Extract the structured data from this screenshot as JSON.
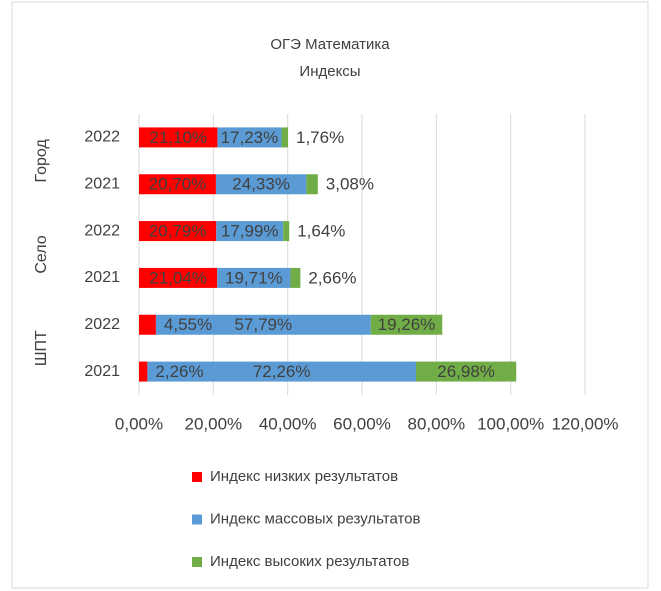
{
  "chart_data": {
    "type": "stacked_barh",
    "title": "ОГЭ Математика",
    "subtitle": "Индексы",
    "groups": [
      "Город",
      "Село",
      "ШПТ"
    ],
    "categories": [
      "2022",
      "2021",
      "2022",
      "2021",
      "2022",
      "2021"
    ],
    "series": [
      {
        "name": "Индекс низких результатов",
        "color": "#ff0000",
        "values": [
          21.1,
          20.7,
          20.79,
          21.04,
          4.55,
          2.26
        ],
        "value_labels": [
          "21,10%",
          "20,70%",
          "20,79%",
          "21,04%",
          "4,55%",
          "2,26%"
        ]
      },
      {
        "name": "Индекс массовых результатов",
        "color": "#5b9bd5",
        "values": [
          17.23,
          24.33,
          17.99,
          19.71,
          57.79,
          72.26
        ],
        "value_labels": [
          "17,23%",
          "24,33%",
          "17,99%",
          "19,71%",
          "57,79%",
          "72,26%"
        ]
      },
      {
        "name": "Индекс высоких результатов",
        "color": "#70ad47",
        "values": [
          1.76,
          3.08,
          1.64,
          2.66,
          19.26,
          26.98
        ],
        "value_labels": [
          "1,76%",
          "3,08%",
          "1,64%",
          "2,66%",
          "19,26%",
          "26,98%"
        ]
      }
    ],
    "xlim": [
      0,
      120
    ],
    "xticks": [
      {
        "value": 0,
        "label": "0,00%"
      },
      {
        "value": 20,
        "label": "20,00%"
      },
      {
        "value": 40,
        "label": "40,00%"
      },
      {
        "value": 60,
        "label": "60,00%"
      },
      {
        "value": 80,
        "label": "80,00%"
      },
      {
        "value": 100,
        "label": "100,00%"
      },
      {
        "value": 120,
        "label": "120,00%"
      }
    ],
    "grid": true,
    "legend": "bottom"
  }
}
